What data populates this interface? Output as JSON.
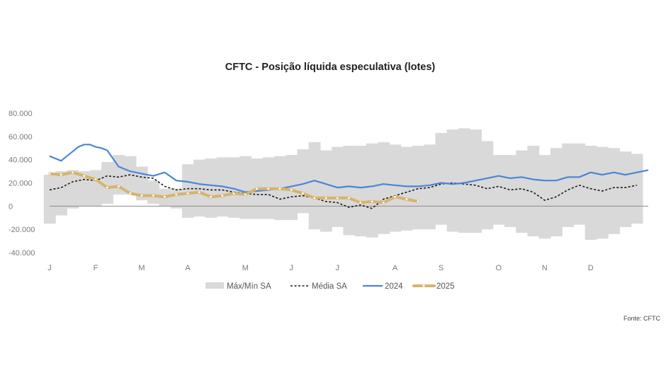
{
  "chart_data": {
    "type": "line",
    "title": "CFTC - Posição líquida especulativa (lotes)",
    "source": "Fonte: CFTC",
    "xlabel": "",
    "ylabel": "",
    "ylim": [
      -40000,
      80000
    ],
    "y_ticks": [
      80000,
      60000,
      40000,
      20000,
      0,
      -20000,
      -40000
    ],
    "y_tick_labels": [
      "80.000",
      "60.000",
      "40.000",
      "20.000",
      "0",
      "-20.000",
      "-40.000"
    ],
    "x_domain": [
      1,
      53
    ],
    "x_ticks": [
      1,
      5,
      9,
      13,
      18,
      22,
      26,
      31,
      35,
      40,
      44,
      48
    ],
    "x_tick_labels": [
      "J",
      "F",
      "M",
      "A",
      "M",
      "J",
      "J",
      "A",
      "S",
      "O",
      "N",
      "D"
    ],
    "x_unit": "week of year",
    "legend": [
      "Máx/Mín SA",
      "Média SA",
      "2024",
      "2025"
    ],
    "legend_position": "bottom",
    "grid": false,
    "colors": {
      "band": "#d9d9d9",
      "media": "#1a1a1a",
      "y2024": "#4a86d6",
      "y2025": "#d6b46e",
      "zero_line": "#8c8c8c"
    },
    "band": {
      "name": "Máx/Mín SA",
      "x": [
        1,
        2,
        3,
        4,
        5,
        6,
        7,
        8,
        9,
        10,
        11,
        12,
        13,
        14,
        15,
        16,
        17,
        18,
        19,
        20,
        21,
        22,
        23,
        24,
        25,
        26,
        27,
        28,
        29,
        30,
        31,
        32,
        33,
        34,
        35,
        36,
        37,
        38,
        39,
        40,
        41,
        42,
        43,
        44,
        45,
        46,
        47,
        48,
        49,
        50,
        51,
        52
      ],
      "max": [
        27000,
        30000,
        31000,
        30000,
        31000,
        38000,
        44000,
        43000,
        34000,
        22000,
        15000,
        15000,
        36000,
        40000,
        41000,
        42000,
        42000,
        43000,
        41000,
        42000,
        43000,
        44000,
        49000,
        55000,
        48000,
        51000,
        52000,
        52000,
        54000,
        55000,
        53000,
        51000,
        52000,
        53000,
        63000,
        66000,
        67000,
        66000,
        56000,
        44000,
        44000,
        48000,
        52000,
        44000,
        50000,
        54000,
        54000,
        52000,
        51000,
        50000,
        47000,
        45000
      ],
      "min": [
        -15000,
        -8000,
        -2000,
        0,
        0,
        2000,
        10000,
        10000,
        5000,
        2000,
        0,
        -2000,
        -10000,
        -9000,
        -10000,
        -9000,
        -10000,
        -11000,
        -11000,
        -11000,
        -12000,
        -12000,
        -6000,
        -20000,
        -22000,
        -18000,
        -25000,
        -26000,
        -27000,
        -24000,
        -22000,
        -21000,
        -20000,
        -20000,
        -16000,
        -22000,
        -23000,
        -23000,
        -20000,
        -16000,
        -18000,
        -23000,
        -26000,
        -28000,
        -26000,
        -18000,
        -16000,
        -29000,
        -28000,
        -24000,
        -18000,
        -15000
      ]
    },
    "series": [
      {
        "name": "Média SA",
        "x": [
          1,
          2,
          3,
          4,
          5,
          6,
          7,
          8,
          9,
          10,
          11,
          12,
          13,
          14,
          15,
          16,
          17,
          18,
          19,
          20,
          21,
          22,
          23,
          24,
          25,
          26,
          27,
          28,
          29,
          30,
          31,
          32,
          33,
          34,
          35,
          36,
          37,
          38,
          39,
          40,
          41,
          42,
          43,
          44,
          45,
          46,
          47,
          48,
          49,
          50,
          51,
          52
        ],
        "values": [
          14000,
          16000,
          21000,
          23000,
          22000,
          26000,
          25000,
          27000,
          25000,
          24000,
          17000,
          14000,
          15000,
          15000,
          14000,
          14000,
          12000,
          11000,
          10000,
          10000,
          6000,
          8000,
          9000,
          7000,
          4000,
          3000,
          -1000,
          1000,
          -2000,
          6000,
          9000,
          12000,
          15000,
          16000,
          19000,
          20000,
          19000,
          18000,
          15000,
          17000,
          14000,
          15000,
          12000,
          5000,
          8000,
          14000,
          18000,
          15000,
          13000,
          16000,
          16000,
          18000
        ],
        "style": "dashed"
      },
      {
        "name": "2024",
        "x": [
          1,
          1.5,
          2,
          2.5,
          3,
          3.5,
          4,
          4.5,
          5,
          5.5,
          6,
          6.5,
          7,
          8,
          9,
          10,
          11,
          12,
          13,
          14,
          15,
          16,
          17,
          18,
          19,
          20,
          21,
          22,
          23,
          24,
          25,
          26,
          27,
          28,
          29,
          30,
          31,
          32,
          33,
          34,
          35,
          36,
          37,
          38,
          39,
          40,
          41,
          42,
          43,
          44,
          45,
          46,
          47,
          48,
          49,
          50,
          51,
          52,
          53
        ],
        "values": [
          43000,
          41000,
          39000,
          43000,
          47000,
          51000,
          53000,
          53000,
          51000,
          50000,
          48000,
          41000,
          34000,
          30000,
          28000,
          26000,
          29000,
          22000,
          21000,
          19000,
          18000,
          17000,
          15000,
          12000,
          13000,
          14000,
          15000,
          17000,
          19000,
          22000,
          19000,
          16000,
          17000,
          16000,
          17000,
          19000,
          18000,
          17000,
          17000,
          18000,
          20000,
          19000,
          20000,
          22000,
          24000,
          26000,
          24000,
          25000,
          23000,
          22000,
          22000,
          25000,
          25000,
          29000,
          27000,
          29000,
          27000,
          29000,
          31000
        ]
      },
      {
        "name": "2025",
        "x": [
          1,
          2,
          3,
          4,
          5,
          6,
          7,
          8,
          9,
          10,
          11,
          12,
          13,
          14,
          15,
          16,
          17,
          18,
          19,
          20,
          21,
          22,
          23,
          24,
          25,
          26,
          27,
          28,
          29,
          30,
          31,
          32,
          33
        ],
        "values": [
          28000,
          27000,
          29000,
          26000,
          23000,
          16000,
          17000,
          11000,
          9000,
          9000,
          8000,
          10000,
          11000,
          12000,
          8000,
          9000,
          11000,
          10000,
          15000,
          15000,
          15000,
          14000,
          11000,
          7000,
          7000,
          7000,
          7000,
          3000,
          4000,
          3000,
          8000,
          6000,
          4000
        ]
      }
    ]
  }
}
